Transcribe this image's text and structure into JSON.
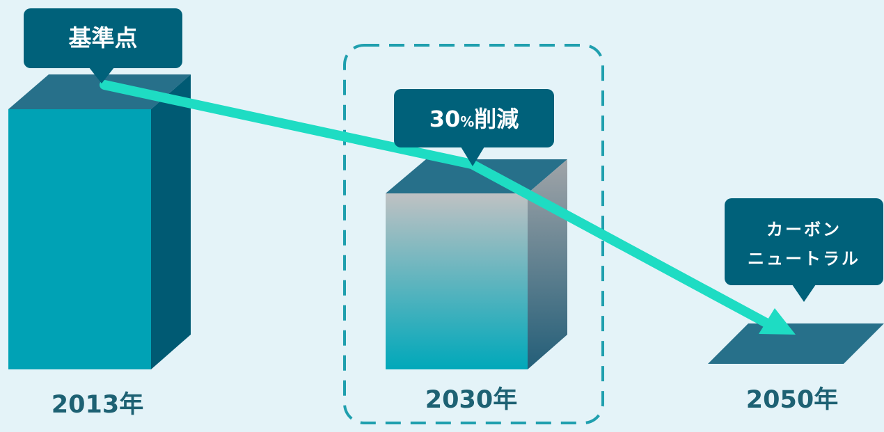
{
  "colors": {
    "background": "#e4f3f8",
    "bar_front": "#00a2b5",
    "bar_top": "#27708a",
    "bar_side": "#005a73",
    "arrow": "#1edcc3",
    "callout": "#00617a",
    "label": "#1d6173",
    "highlight_border": "#1f9fae"
  },
  "chart_data": {
    "type": "bar",
    "categories": [
      "2013年",
      "2030年",
      "2050年"
    ],
    "values": [
      100,
      70,
      0
    ],
    "annotations": [
      "基準点",
      "30%削減",
      "カーボン\nニュートラル"
    ]
  },
  "labels": {
    "year_2013": "2013年",
    "year_2030": "2030年",
    "year_2050": "2050年"
  },
  "callouts": {
    "baseline": "基準点",
    "reduction_number": "30",
    "reduction_percent": "%",
    "reduction_word": "削減",
    "neutral_line1": "カーボン",
    "neutral_line2": "ニュートラル"
  }
}
